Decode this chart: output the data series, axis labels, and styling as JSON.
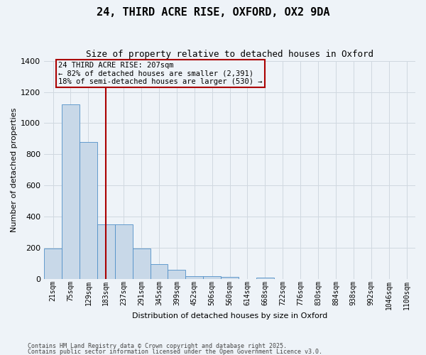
{
  "title": "24, THIRD ACRE RISE, OXFORD, OX2 9DA",
  "subtitle": "Size of property relative to detached houses in Oxford",
  "xlabel": "Distribution of detached houses by size in Oxford",
  "ylabel": "Number of detached properties",
  "categories": [
    "21sqm",
    "75sqm",
    "129sqm",
    "183sqm",
    "237sqm",
    "291sqm",
    "345sqm",
    "399sqm",
    "452sqm",
    "506sqm",
    "560sqm",
    "614sqm",
    "668sqm",
    "722sqm",
    "776sqm",
    "830sqm",
    "884sqm",
    "938sqm",
    "992sqm",
    "1046sqm",
    "1100sqm"
  ],
  "values": [
    195,
    1120,
    880,
    350,
    350,
    195,
    95,
    60,
    20,
    20,
    15,
    0,
    10,
    0,
    0,
    0,
    0,
    0,
    0,
    0,
    0
  ],
  "bar_color": "#c8d8e8",
  "bar_edge_color": "#5090c8",
  "grid_color": "#d0d8e0",
  "background_color": "#eef3f8",
  "vline_x_index": 3,
  "vline_color": "#aa0000",
  "annotation_text": "24 THIRD ACRE RISE: 207sqm\n← 82% of detached houses are smaller (2,391)\n18% of semi-detached houses are larger (530) →",
  "annotation_box_color": "#aa0000",
  "footnote1": "Contains HM Land Registry data © Crown copyright and database right 2025.",
  "footnote2": "Contains public sector information licensed under the Open Government Licence v3.0.",
  "ylim": [
    0,
    1400
  ],
  "title_fontsize": 11,
  "subtitle_fontsize": 9,
  "xlabel_fontsize": 8,
  "ylabel_fontsize": 8,
  "tick_fontsize": 7,
  "annotation_fontsize": 7.5,
  "footnote_fontsize": 6
}
